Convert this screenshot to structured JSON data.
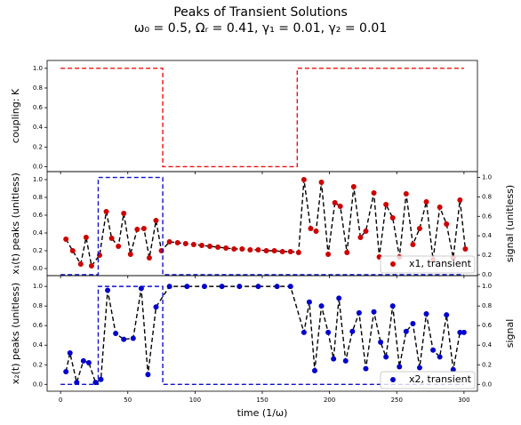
{
  "chart_data": [
    {
      "type": "line",
      "title": "Peaks of Transient Solutions",
      "subtitle": "ω₀ = 0.5, Ωᵣ = 0.41, γ₁ = 0.01, γ₂ = 0.01",
      "ylabel": "coupling: K",
      "xlim": [
        -10,
        310
      ],
      "xticks": [
        0,
        50,
        100,
        150,
        200,
        250,
        300
      ],
      "ylim": [
        -0.05,
        1.08
      ],
      "yticks": [
        {
          "value": 0,
          "label": "0.0"
        },
        0.2,
        0.4,
        0.6,
        0.8,
        {
          "value": 1,
          "label": "1.0"
        }
      ],
      "series": [
        {
          "color": "#ee1111",
          "style": "dashed",
          "markers": false,
          "x": [
            0,
            76,
            76,
            176,
            176,
            300
          ],
          "values": [
            1,
            1,
            0,
            0,
            1,
            1
          ]
        }
      ]
    },
    {
      "type": "line",
      "ylabel": "x₁(t) peaks (unitless)",
      "y2label": "signal (unitless)",
      "xlim": [
        -10,
        310
      ],
      "xticks": [
        0,
        50,
        100,
        150,
        200,
        250,
        300
      ],
      "ylim": [
        -0.08,
        1.09
      ],
      "yticks": [
        {
          "value": 0,
          "label": "0.0"
        },
        0.2,
        0.4,
        0.6,
        0.8,
        {
          "value": 1,
          "label": "1.0"
        }
      ],
      "y2lim": [
        -0.01,
        1.06
      ],
      "y2ticks": [
        {
          "value": 0,
          "label": "0.0"
        },
        0.2,
        0.4,
        0.6,
        0.8,
        {
          "value": 1,
          "label": "1.0"
        }
      ],
      "legend": "lower right",
      "series": [
        {
          "name": "x1, transient",
          "color": "#cc0000",
          "line_color": "#000000",
          "style": "dashed",
          "markers": true,
          "x": [
            4,
            9,
            15,
            19,
            23,
            29,
            34,
            38,
            43,
            47,
            52,
            57,
            62,
            66,
            71,
            75,
            81,
            87,
            93,
            99,
            105,
            111,
            117,
            123,
            129,
            135,
            141,
            147,
            153,
            159,
            165,
            171,
            177,
            181,
            186,
            190,
            194,
            199,
            204,
            208,
            213,
            218,
            223,
            227,
            233,
            237,
            242,
            247,
            252,
            257,
            262,
            267,
            272,
            277,
            282,
            287,
            292,
            297,
            301
          ],
          "values": [
            0.33,
            0.2,
            0.05,
            0.35,
            0.03,
            0.15,
            0.64,
            0.34,
            0.25,
            0.62,
            0.16,
            0.44,
            0.45,
            0.12,
            0.54,
            0.2,
            0.3,
            0.29,
            0.28,
            0.27,
            0.26,
            0.25,
            0.24,
            0.23,
            0.22,
            0.22,
            0.21,
            0.21,
            0.2,
            0.2,
            0.19,
            0.19,
            0.18,
            1.0,
            0.45,
            0.42,
            0.97,
            0.16,
            0.74,
            0.7,
            0.18,
            0.92,
            0.35,
            0.42,
            0.85,
            0.13,
            0.72,
            0.57,
            0.13,
            0.84,
            0.27,
            0.45,
            0.75,
            0.1,
            0.69,
            0.5,
            0.12,
            0.77,
            0.22
          ]
        },
        {
          "color": "#1111cc",
          "style": "dashed",
          "markers": false,
          "axis": "y2",
          "x": [
            0,
            28,
            28,
            76,
            76,
            300
          ],
          "values": [
            0,
            0,
            1,
            1,
            0,
            0
          ]
        }
      ]
    },
    {
      "type": "line",
      "ylabel": "x₂(t) peaks (unitless)",
      "y2label": "signal",
      "xlabel": "time (1/ω)",
      "xlim": [
        -10,
        310
      ],
      "xticks": [
        0,
        50,
        100,
        150,
        200,
        250,
        300
      ],
      "xtick_labels": true,
      "ylim": [
        -0.07,
        1.11
      ],
      "yticks": [
        {
          "value": 0,
          "label": "0.0"
        },
        0.2,
        0.4,
        0.6,
        0.8,
        {
          "value": 1,
          "label": "1.0"
        }
      ],
      "y2lim": [
        -0.07,
        1.11
      ],
      "y2ticks": [
        {
          "value": 0,
          "label": "0.0"
        },
        0.2,
        0.4,
        0.6,
        0.8,
        {
          "value": 1,
          "label": "1.0"
        }
      ],
      "legend": "lower right",
      "series": [
        {
          "name": "x2, transient",
          "color": "#0000cc",
          "line_color": "#000000",
          "style": "dashed",
          "markers": true,
          "x": [
            4,
            7,
            12,
            17,
            21,
            26,
            30,
            35,
            41,
            47,
            54,
            60,
            65,
            71,
            81,
            94,
            107,
            120,
            133,
            147,
            161,
            171,
            181,
            185,
            189,
            194,
            199,
            203,
            207,
            212,
            217,
            222,
            227,
            233,
            238,
            242,
            247,
            252,
            257,
            262,
            267,
            272,
            277,
            282,
            287,
            292,
            297,
            300
          ],
          "values": [
            0.13,
            0.32,
            0.02,
            0.24,
            0.22,
            0.02,
            0.05,
            0.96,
            0.52,
            0.46,
            0.47,
            0.98,
            0.1,
            0.79,
            1.0,
            1.0,
            1.0,
            1.0,
            1.0,
            1.0,
            1.0,
            1.0,
            0.53,
            0.84,
            0.14,
            0.8,
            0.53,
            0.26,
            0.88,
            0.24,
            0.54,
            0.73,
            0.16,
            0.74,
            0.43,
            0.28,
            0.8,
            0.18,
            0.54,
            0.62,
            0.17,
            0.72,
            0.35,
            0.28,
            0.71,
            0.15,
            0.53,
            0.53
          ]
        },
        {
          "color": "#1111cc",
          "style": "dashed",
          "markers": false,
          "axis": "y2",
          "x": [
            0,
            28,
            28,
            76,
            76,
            300
          ],
          "values": [
            0,
            0,
            1,
            1,
            0,
            0
          ]
        }
      ]
    }
  ]
}
